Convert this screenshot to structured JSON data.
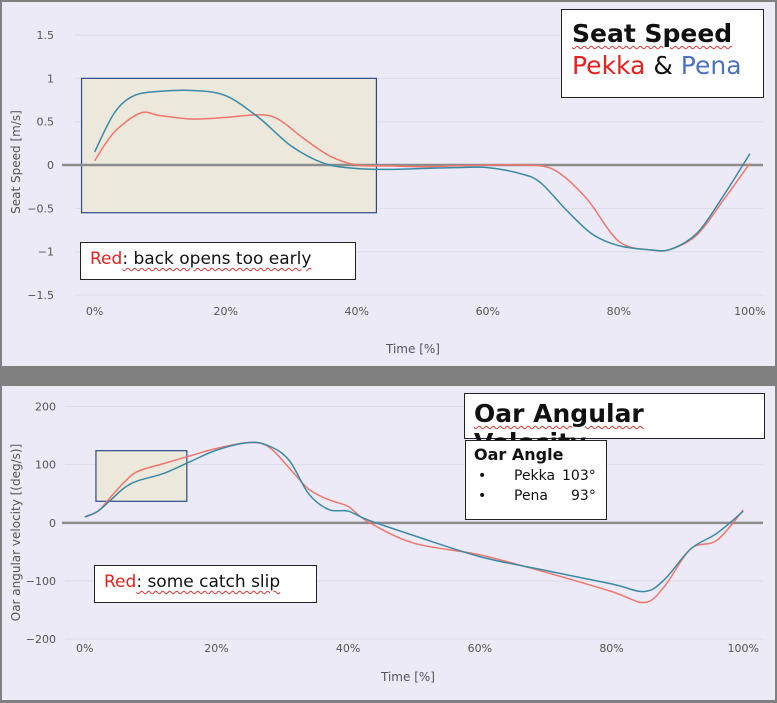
{
  "annotations": {
    "seat_title": "Seat Speed",
    "seat_subtitle_a": "Pekka",
    "seat_subtitle_and": " & ",
    "seat_subtitle_b": "Pena",
    "seat_note_red": "Red",
    "seat_note_text": ": back opens too early",
    "oar_title": "Oar Angular Velocity",
    "oar_angle_header": "Oar Angle",
    "oar_angle_rows": [
      {
        "bullet": "•",
        "name": "Pekka",
        "value": "103°"
      },
      {
        "bullet": "•",
        "name": "Pena",
        "value": "93°"
      }
    ],
    "slip_note_red": "Red",
    "slip_note_text": ": some catch slip"
  },
  "colors": {
    "pekka": "#f0766c",
    "pena": "#3a8aa6",
    "zeroline": "#8c8c8c",
    "highlight_fill": "#ece8dc",
    "highlight_border": "#2e4a8a"
  },
  "chart_data": [
    {
      "type": "line",
      "xlabel": "Time [%]",
      "ylabel": "Seat Speed [m/s]",
      "xlim": [
        -3,
        102
      ],
      "ylim": [
        -1.58,
        1.65
      ],
      "x_ticks": [
        0,
        20,
        40,
        60,
        80,
        100
      ],
      "x_tick_labels": [
        "0%",
        "20%",
        "40%",
        "60%",
        "80%",
        "100%"
      ],
      "y_ticks": [
        1.5,
        1,
        0.5,
        0,
        -0.5,
        -1,
        -1.5
      ],
      "y_tick_labels": [
        "1.5",
        "1",
        "0.5",
        "0",
        "−0.5",
        "−1",
        "−1.5"
      ],
      "grid": true,
      "highlight": {
        "x": [
          -2,
          43
        ],
        "y": [
          -0.55,
          1.0
        ]
      },
      "series": [
        {
          "name": "Pekka",
          "color": "#f0766c",
          "x": [
            0,
            3,
            7,
            10,
            15,
            20,
            25,
            28,
            32,
            36,
            40,
            45,
            50,
            55,
            60,
            65,
            70,
            75,
            80,
            85,
            88,
            92,
            96,
            100
          ],
          "y": [
            0.05,
            0.38,
            0.6,
            0.57,
            0.53,
            0.55,
            0.58,
            0.53,
            0.3,
            0.1,
            0.0,
            -0.01,
            -0.02,
            -0.01,
            0.0,
            0.0,
            -0.05,
            -0.38,
            -0.88,
            -0.98,
            -0.97,
            -0.8,
            -0.4,
            0.02
          ]
        },
        {
          "name": "Pena",
          "color": "#3a8aa6",
          "x": [
            0,
            3,
            6,
            10,
            15,
            20,
            25,
            30,
            35,
            40,
            45,
            50,
            55,
            60,
            65,
            68,
            72,
            76,
            80,
            85,
            88,
            92,
            96,
            100
          ],
          "y": [
            0.15,
            0.6,
            0.8,
            0.85,
            0.86,
            0.8,
            0.55,
            0.22,
            0.02,
            -0.04,
            -0.05,
            -0.04,
            -0.03,
            -0.03,
            -0.1,
            -0.2,
            -0.52,
            -0.8,
            -0.93,
            -0.98,
            -0.97,
            -0.78,
            -0.35,
            0.13
          ]
        }
      ]
    },
    {
      "type": "line",
      "xlabel": "Time [%]",
      "ylabel": "Oar angular velocity [(deg/s)]",
      "xlim": [
        -3,
        103
      ],
      "ylim": [
        -210,
        218
      ],
      "x_ticks": [
        0,
        20,
        40,
        60,
        80,
        100
      ],
      "x_tick_labels": [
        "0%",
        "20%",
        "40%",
        "60%",
        "80%",
        "100%"
      ],
      "y_ticks": [
        200,
        100,
        0,
        -100,
        -200
      ],
      "y_tick_labels": [
        "200",
        "100",
        "0",
        "−100",
        "−200"
      ],
      "grid": true,
      "highlight": {
        "x": [
          1.7,
          15.5
        ],
        "y": [
          37,
          124
        ]
      },
      "series": [
        {
          "name": "Pekka",
          "color": "#f0766c",
          "x": [
            0,
            2,
            4,
            6,
            8,
            12,
            16,
            20,
            25,
            28,
            31,
            34,
            37,
            40,
            43,
            50,
            60,
            70,
            80,
            85,
            88,
            92,
            96,
            100
          ],
          "y": [
            10,
            20,
            45,
            70,
            88,
            102,
            115,
            128,
            138,
            130,
            95,
            58,
            40,
            28,
            2,
            -35,
            -55,
            -85,
            -118,
            -137,
            -110,
            -45,
            -30,
            22
          ]
        },
        {
          "name": "Pena",
          "color": "#3a8aa6",
          "x": [
            0,
            2,
            4,
            6,
            8,
            12,
            16,
            20,
            25,
            28,
            31,
            34,
            37,
            40,
            43,
            50,
            60,
            70,
            80,
            85,
            88,
            92,
            96,
            100
          ],
          "y": [
            10,
            20,
            40,
            60,
            72,
            85,
            105,
            125,
            138,
            132,
            108,
            50,
            23,
            20,
            5,
            -22,
            -58,
            -82,
            -105,
            -118,
            -98,
            -45,
            -18,
            20
          ]
        }
      ]
    }
  ]
}
